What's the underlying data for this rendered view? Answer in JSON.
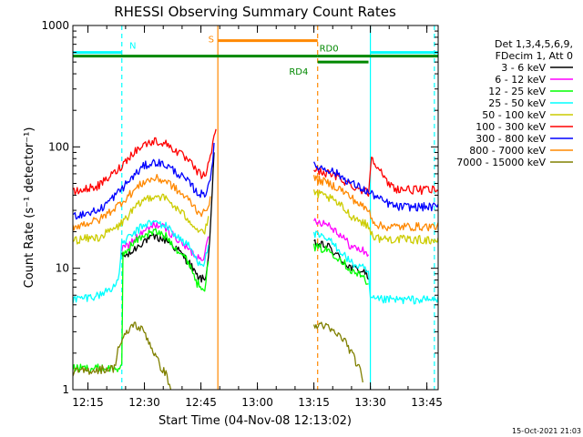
{
  "chart_data": {
    "type": "line",
    "title": "RHESSI Observing Summary Count Rates",
    "xlabel": "Start Time (04-Nov-08 12:13:02)",
    "ylabel": "Count Rate (s⁻¹ detector⁻¹)",
    "yscale": "log",
    "ylim": [
      1,
      1000
    ],
    "y_ticks": [
      {
        "value": 1,
        "label": "1"
      },
      {
        "value": 10,
        "label": "10"
      },
      {
        "value": 100,
        "label": "100"
      },
      {
        "value": 1000,
        "label": "1000"
      }
    ],
    "xlim_min": [
      -2,
      95
    ],
    "x_ticks": [
      {
        "min": 2,
        "label": "12:15"
      },
      {
        "min": 17,
        "label": "12:30"
      },
      {
        "min": 32,
        "label": "12:45"
      },
      {
        "min": 47,
        "label": "13:00"
      },
      {
        "min": 62,
        "label": "13:15"
      },
      {
        "min": 77,
        "label": "13:30"
      },
      {
        "min": 92,
        "label": "13:45"
      }
    ],
    "legend": {
      "header": [
        "Det 1,3,4,5,6,9,",
        "FDecim 1, Att 0"
      ],
      "placement": "right"
    },
    "series": [
      {
        "name": "3 - 6 keV",
        "color": "#000000",
        "segments": [
          [
            [
              11,
              12.5
            ],
            [
              13,
              13
            ],
            [
              15,
              15
            ],
            [
              17,
              17
            ],
            [
              20,
              18
            ],
            [
              23,
              17
            ],
            [
              26,
              14
            ],
            [
              29,
              11
            ],
            [
              31,
              8.5
            ],
            [
              33,
              8.0
            ],
            [
              34,
              12
            ],
            [
              35,
              40
            ],
            [
              35.5,
              90
            ]
          ],
          [
            [
              62,
              16
            ],
            [
              66,
              15
            ],
            [
              69,
              12
            ],
            [
              72,
              10
            ],
            [
              75,
              9.5
            ],
            [
              76.5,
              8.5
            ]
          ]
        ]
      },
      {
        "name": "6 - 12 keV",
        "color": "#ff00ff",
        "segments": [
          [
            [
              11,
              14
            ],
            [
              14,
              17
            ],
            [
              17,
              20
            ],
            [
              20,
              23
            ],
            [
              23,
              21
            ],
            [
              26,
              17
            ],
            [
              29,
              14
            ],
            [
              31,
              12.5
            ],
            [
              33,
              12.5
            ],
            [
              34,
              18
            ]
          ],
          [
            [
              62,
              25
            ],
            [
              66,
              23
            ],
            [
              69,
              19
            ],
            [
              72,
              15
            ],
            [
              75,
              14
            ],
            [
              76.5,
              13
            ]
          ]
        ]
      },
      {
        "name": "12 - 25 keV",
        "color": "#00ff00",
        "segments": [
          [
            [
              -2,
              1.5
            ],
            [
              11,
              1.5
            ],
            [
              11.3,
              13
            ],
            [
              14,
              16
            ],
            [
              17,
              19
            ],
            [
              20,
              20
            ],
            [
              23,
              18
            ],
            [
              26,
              14
            ],
            [
              29,
              11
            ],
            [
              31,
              7.5
            ],
            [
              33,
              7.0
            ],
            [
              34,
              11
            ]
          ],
          [
            [
              62,
              15
            ],
            [
              66,
              14
            ],
            [
              69,
              12
            ],
            [
              72,
              9.5
            ],
            [
              75,
              8.5
            ],
            [
              76.5,
              7.5
            ]
          ]
        ]
      },
      {
        "name": "25 - 50 keV",
        "color": "#00ffff",
        "segments": [
          [
            [
              -2,
              5.5
            ],
            [
              5,
              6.0
            ],
            [
              10,
              7.5
            ],
            [
              11,
              16
            ],
            [
              14,
              19
            ],
            [
              17,
              23
            ],
            [
              20,
              24
            ],
            [
              23,
              22
            ],
            [
              26,
              18
            ],
            [
              29,
              15
            ],
            [
              31,
              11.5
            ],
            [
              33,
              11.0
            ],
            [
              34,
              16
            ]
          ],
          [
            [
              62,
              19
            ],
            [
              66,
              17
            ],
            [
              69,
              14
            ],
            [
              72,
              11
            ],
            [
              75,
              10
            ],
            [
              76.5,
              9.0
            ],
            [
              77,
              5.5
            ],
            [
              95,
              5.5
            ]
          ]
        ]
      },
      {
        "name": "50 - 100 keV",
        "color": "#cccc00",
        "segments": [
          [
            [
              -2,
              17
            ],
            [
              5,
              18
            ],
            [
              10,
              22
            ],
            [
              14,
              30
            ],
            [
              17,
              37
            ],
            [
              20,
              40
            ],
            [
              23,
              37
            ],
            [
              26,
              30
            ],
            [
              29,
              25
            ],
            [
              31,
              21
            ],
            [
              33,
              20
            ],
            [
              34,
              25
            ]
          ],
          [
            [
              62,
              42
            ],
            [
              66,
              38
            ],
            [
              69,
              33
            ],
            [
              72,
              27
            ],
            [
              75,
              24
            ],
            [
              76.5,
              22
            ],
            [
              78,
              18
            ],
            [
              80,
              17.5
            ],
            [
              95,
              17
            ]
          ]
        ]
      },
      {
        "name": "100 - 300 keV",
        "color": "#ff0000",
        "segments": [
          [
            [
              -2,
              42
            ],
            [
              5,
              48
            ],
            [
              10,
              65
            ],
            [
              14,
              90
            ],
            [
              17,
              105
            ],
            [
              20,
              112
            ],
            [
              23,
              105
            ],
            [
              26,
              90
            ],
            [
              29,
              75
            ],
            [
              31,
              62
            ],
            [
              33,
              57
            ],
            [
              34.5,
              80
            ],
            [
              35.5,
              125
            ],
            [
              36,
              145
            ]
          ],
          [
            [
              62,
              65
            ],
            [
              66,
              60
            ],
            [
              69,
              55
            ],
            [
              72,
              48
            ],
            [
              75,
              44
            ],
            [
              76.5,
              42
            ],
            [
              77.3,
              82
            ],
            [
              79,
              70
            ],
            [
              81,
              52
            ],
            [
              84,
              45
            ],
            [
              90,
              44
            ],
            [
              95,
              44
            ]
          ]
        ]
      },
      {
        "name": "300 - 800 keV",
        "color": "#0000ff",
        "segments": [
          [
            [
              -2,
              27
            ],
            [
              5,
              30
            ],
            [
              10,
              42
            ],
            [
              14,
              57
            ],
            [
              17,
              70
            ],
            [
              20,
              75
            ],
            [
              23,
              70
            ],
            [
              26,
              60
            ],
            [
              29,
              50
            ],
            [
              31,
              42
            ],
            [
              33,
              40
            ],
            [
              34.5,
              55
            ],
            [
              35.5,
              100
            ]
          ],
          [
            [
              62,
              70
            ],
            [
              66,
              65
            ],
            [
              69,
              58
            ],
            [
              72,
              50
            ],
            [
              75,
              45
            ],
            [
              76.5,
              42
            ],
            [
              78,
              40
            ],
            [
              80,
              36
            ],
            [
              84,
              32
            ],
            [
              95,
              32
            ]
          ]
        ]
      },
      {
        "name": "800 - 7000 keV",
        "color": "#ff8800",
        "segments": [
          [
            [
              -2,
              22
            ],
            [
              5,
              25
            ],
            [
              10,
              33
            ],
            [
              14,
              43
            ],
            [
              17,
              52
            ],
            [
              20,
              55
            ],
            [
              23,
              52
            ],
            [
              26,
              43
            ],
            [
              29,
              36
            ],
            [
              31,
              30
            ],
            [
              33,
              28
            ],
            [
              34.5,
              38
            ]
          ],
          [
            [
              62,
              55
            ],
            [
              66,
              50
            ],
            [
              69,
              45
            ],
            [
              72,
              38
            ],
            [
              75,
              32
            ],
            [
              76.5,
              30
            ],
            [
              78,
              24
            ],
            [
              80,
              22
            ],
            [
              95,
              22
            ]
          ]
        ]
      },
      {
        "name": "7000 - 15000 keV",
        "color": "#808000",
        "segments": [
          [
            [
              -2,
              1.4
            ],
            [
              9,
              1.5
            ],
            [
              10,
              2.2
            ],
            [
              12,
              2.8
            ],
            [
              14,
              3.5
            ],
            [
              17,
              3.0
            ],
            [
              19,
              2.2
            ],
            [
              21,
              1.6
            ],
            [
              23,
              1.3
            ],
            [
              24,
              1.0
            ]
          ],
          [
            [
              62,
              3.2
            ],
            [
              64,
              3.5
            ],
            [
              67,
              3.0
            ],
            [
              70,
              2.6
            ],
            [
              72,
              2.0
            ],
            [
              74,
              1.5
            ],
            [
              75,
              1.2
            ]
          ]
        ]
      }
    ],
    "annotations": [
      {
        "label": "N",
        "color": "#00ffff",
        "kind": "bar",
        "y": 600,
        "segments": [
          [
            -2,
            11
          ],
          [
            77,
            95
          ]
        ]
      },
      {
        "label": "S",
        "color": "#ff8800",
        "kind": "bar",
        "y": 750,
        "segments": [
          [
            36.5,
            63
          ]
        ]
      },
      {
        "label": "RD0",
        "color": "#008800",
        "kind": "bar",
        "y": 560,
        "segments": [
          [
            -2,
            63
          ],
          [
            63,
            77
          ],
          [
            77,
            95
          ]
        ]
      },
      {
        "label": "RD4",
        "color": "#008800",
        "kind": "bar",
        "y": 500,
        "segments": [
          [
            63,
            76.5
          ]
        ]
      }
    ],
    "vlines": [
      {
        "min": 11,
        "color": "#00ffff",
        "style": "dashed"
      },
      {
        "min": 77,
        "color": "#00ffff",
        "style": "solid"
      },
      {
        "min": 94,
        "color": "#00ffff",
        "style": "dashed"
      },
      {
        "min": 36.5,
        "color": "#ff8800",
        "style": "solid"
      },
      {
        "min": 63,
        "color": "#ff8800",
        "style": "dashed"
      }
    ],
    "timestamp": "15-Oct-2021 21:03",
    "grid": false
  }
}
